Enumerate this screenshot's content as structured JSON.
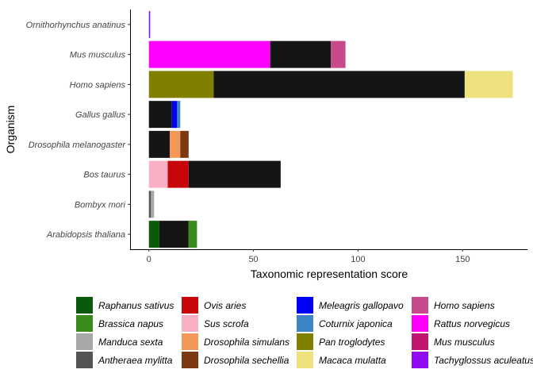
{
  "chart_data": {
    "type": "bar",
    "orientation": "horizontal",
    "stacked": true,
    "xlabel": "Taxonomic representation score",
    "ylabel": "Organism",
    "xlim": [
      -9,
      181
    ],
    "xticks": [
      0,
      50,
      100,
      150
    ],
    "categories": [
      "Arabidopsis thaliana",
      "Bombyx mori",
      "Bos taurus",
      "Drosophila melanogaster",
      "Gallus gallus",
      "Homo sapiens",
      "Mus musculus",
      "Ornithorhynchus anatinus"
    ],
    "legend_position": "bottom",
    "legend": [
      {
        "name": "Raphanus sativus",
        "color": "#0b5a0b"
      },
      {
        "name": "Brassica napus",
        "color": "#3a8a1c"
      },
      {
        "name": "Manduca sexta",
        "color": "#a8a8a8"
      },
      {
        "name": "Antheraea mylitta",
        "color": "#555555"
      },
      {
        "name": "Ovis aries",
        "color": "#c8050a"
      },
      {
        "name": "Sus scrofa",
        "color": "#f9b0c4"
      },
      {
        "name": "Drosophila simulans",
        "color": "#f2995a"
      },
      {
        "name": "Drosophila sechellia",
        "color": "#7c3a14"
      },
      {
        "name": "Meleagris gallopavo",
        "color": "#0000f5"
      },
      {
        "name": "Coturnix japonica",
        "color": "#3d85c6"
      },
      {
        "name": "Pan troglodytes",
        "color": "#808000"
      },
      {
        "name": "Macaca mulatta",
        "color": "#ede27d"
      },
      {
        "name": "Homo sapiens",
        "color": "#c74a8a"
      },
      {
        "name": "Rattus norvegicus",
        "color": "#ff00ff"
      },
      {
        "name": "Mus musculus",
        "color": "#c0166e"
      },
      {
        "name": "Tachyglossus aculeatus",
        "color": "#8f0af2"
      }
    ],
    "self_color": "#151515",
    "bars": [
      {
        "organism": "Arabidopsis thaliana",
        "segments": [
          {
            "name": "Raphanus sativus",
            "value": 5
          },
          {
            "name": "self",
            "value": 14
          },
          {
            "name": "Brassica napus",
            "value": 4
          }
        ]
      },
      {
        "organism": "Bombyx mori",
        "segments": [
          {
            "name": "Antheraea mylitta",
            "value": 1
          },
          {
            "name": "Manduca sexta",
            "value": 1.5
          }
        ]
      },
      {
        "organism": "Bos taurus",
        "segments": [
          {
            "name": "Sus scrofa",
            "value": 9
          },
          {
            "name": "Ovis aries",
            "value": 10
          },
          {
            "name": "self",
            "value": 44
          }
        ]
      },
      {
        "organism": "Drosophila melanogaster",
        "segments": [
          {
            "name": "self",
            "value": 10
          },
          {
            "name": "Drosophila simulans",
            "value": 5
          },
          {
            "name": "Drosophila sechellia",
            "value": 4
          }
        ]
      },
      {
        "organism": "Gallus gallus",
        "segments": [
          {
            "name": "self",
            "value": 11
          },
          {
            "name": "Meleagris gallopavo",
            "value": 2.5
          },
          {
            "name": "Coturnix japonica",
            "value": 1.5
          }
        ]
      },
      {
        "organism": "Homo sapiens",
        "segments": [
          {
            "name": "Pan troglodytes",
            "value": 31
          },
          {
            "name": "self",
            "value": 120
          },
          {
            "name": "Macaca mulatta",
            "value": 23
          }
        ]
      },
      {
        "organism": "Mus musculus",
        "segments": [
          {
            "name": "Rattus norvegicus",
            "value": 58
          },
          {
            "name": "self",
            "value": 29
          },
          {
            "name": "Homo sapiens",
            "value": 7
          }
        ]
      },
      {
        "organism": "Ornithorhynchus anatinus",
        "segments": [
          {
            "name": "Tachyglossus aculeatus",
            "value": 0.6
          }
        ]
      }
    ]
  }
}
